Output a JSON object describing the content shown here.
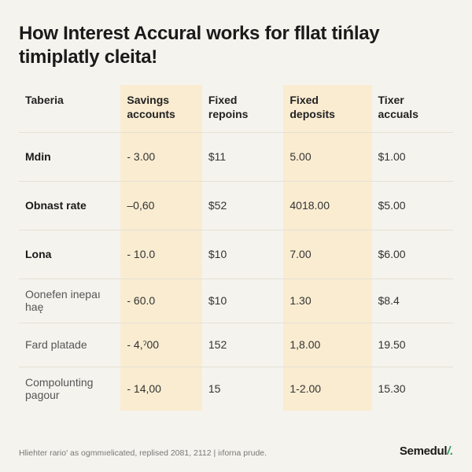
{
  "title": "How Interest Accural works for fllat tińlay timiplatly cleita!",
  "columns": [
    "Taberia",
    "Savings accounts",
    "Fixed repoins",
    "Fixed deposits",
    "Tixer accuals"
  ],
  "highlight_cols": [
    1,
    3
  ],
  "highlight_bg": "#faecd1",
  "page_bg": "#f5f3ed",
  "divider_color": "#e4e1d6",
  "rows": [
    {
      "label": "Mdin",
      "bold": true,
      "cells": [
        "- 3.00",
        "$11",
        "5.00",
        "$1.00"
      ]
    },
    {
      "label": "Obnast rate",
      "bold": true,
      "cells": [
        "–0,60",
        "$52",
        "4018.00",
        "$5.00"
      ]
    },
    {
      "label": "Lona",
      "bold": true,
      "cells": [
        "- 10.0",
        "$10",
        "7.00",
        "$6.00"
      ]
    },
    {
      "label": "Oonefen inepaı haę",
      "bold": false,
      "cells": [
        "- 60.0",
        "$10",
        "1.30",
        "$8.4"
      ]
    },
    {
      "label": "Fard platade",
      "bold": false,
      "cells": [
        "- 4,ˀ00",
        "152",
        "1,8.00",
        "19.50"
      ]
    },
    {
      "label": "Compolunting pagour",
      "bold": false,
      "cells": [
        "- 14,00",
        "15",
        "1-2.00",
        "15.30"
      ]
    }
  ],
  "footnote": "Hliehter rario' as ogmmıelicated, replised 2081, 2112 | iıforna prude.",
  "brand": {
    "text": "Semedul",
    "accent": "/."
  },
  "fonts": {
    "title": 24,
    "header": 14,
    "cell": 14,
    "foot": 10.5,
    "brand": 15
  }
}
